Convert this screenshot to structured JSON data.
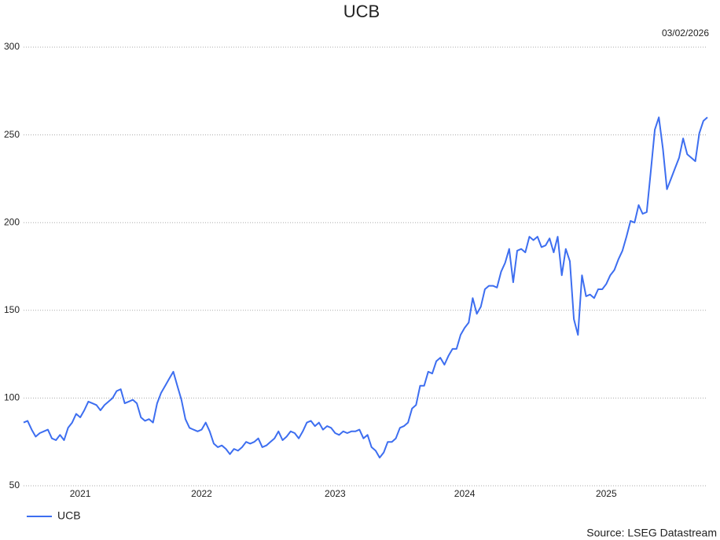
{
  "chart_data": {
    "type": "line",
    "title": "UCB",
    "date": "03/02/2026",
    "source": "Source: LSEG Datastream",
    "categories": [
      null,
      null,
      null,
      null,
      null,
      null,
      null,
      null,
      null,
      null,
      null,
      null,
      null,
      null,
      "2021",
      null,
      null,
      null,
      null,
      null,
      null,
      null,
      null,
      null,
      null,
      null,
      null,
      null,
      null,
      null,
      null,
      null,
      null,
      null,
      null,
      null,
      null,
      null,
      null,
      null,
      null,
      null,
      null,
      null,
      "2022",
      null,
      null,
      null,
      null,
      null,
      null,
      null,
      null,
      null,
      null,
      null,
      null,
      null,
      null,
      null,
      null,
      null,
      null,
      null,
      null,
      null,
      null,
      null,
      null,
      null,
      null,
      null,
      null,
      null,
      null,
      null,
      null,
      "2023",
      null,
      null,
      null,
      null,
      null,
      null,
      null,
      null,
      null,
      null,
      null,
      null,
      null,
      null,
      null,
      null,
      null,
      null,
      null,
      null,
      null,
      null,
      null,
      null,
      null,
      null,
      null,
      null,
      null,
      null,
      null,
      "2024",
      null,
      null,
      null,
      null,
      null,
      null,
      null,
      null,
      null,
      null,
      null,
      null,
      null,
      null,
      null,
      null,
      null,
      null,
      null,
      null,
      null,
      null,
      null,
      null,
      null,
      null,
      null,
      null,
      null,
      null,
      null,
      null,
      null,
      null,
      "2025",
      null,
      null,
      null,
      null,
      null,
      null,
      null,
      null,
      null,
      null,
      null,
      null,
      null,
      null,
      null,
      null,
      null,
      null,
      null,
      null,
      null,
      null,
      null,
      null,
      null
    ],
    "series": [
      {
        "name": "UCB",
        "color": "#3d6ef0",
        "values": [
          86,
          87,
          82,
          78,
          80,
          81,
          82,
          77,
          76,
          79,
          76,
          83,
          86,
          91,
          89,
          93,
          98,
          97,
          96,
          93,
          96,
          98,
          100,
          104,
          105,
          97,
          98,
          99,
          97,
          89,
          87,
          88,
          86,
          97,
          103,
          107,
          111,
          115,
          107,
          99,
          88,
          83,
          82,
          81,
          82,
          86,
          81,
          74,
          72,
          73,
          71,
          68,
          71,
          70,
          72,
          75,
          74,
          75,
          77,
          72,
          73,
          75,
          77,
          81,
          76,
          78,
          81,
          80,
          77,
          81,
          86,
          87,
          84,
          86,
          82,
          84,
          83,
          80,
          79,
          81,
          80,
          81,
          81,
          82,
          77,
          79,
          72,
          70,
          66,
          69,
          75,
          75,
          77,
          83,
          84,
          86,
          94,
          96,
          107,
          107,
          115,
          114,
          121,
          123,
          119,
          124,
          128,
          128,
          136,
          140,
          143,
          157,
          148,
          152,
          162,
          164,
          164,
          163,
          172,
          177,
          185,
          166,
          184,
          185,
          183,
          192,
          190,
          192,
          186,
          187,
          191,
          183,
          192,
          170,
          185,
          178,
          145,
          136,
          170,
          158,
          159,
          157,
          162,
          162,
          165,
          170,
          173,
          179,
          184,
          192,
          201,
          200,
          210,
          205,
          206,
          229,
          253,
          260,
          242,
          219,
          225,
          231,
          237,
          248,
          239,
          237,
          235,
          251,
          258,
          260
        ]
      }
    ],
    "ylim": [
      50,
      300
    ],
    "yticks": [
      50,
      100,
      150,
      200,
      250,
      300
    ],
    "grid": true
  }
}
